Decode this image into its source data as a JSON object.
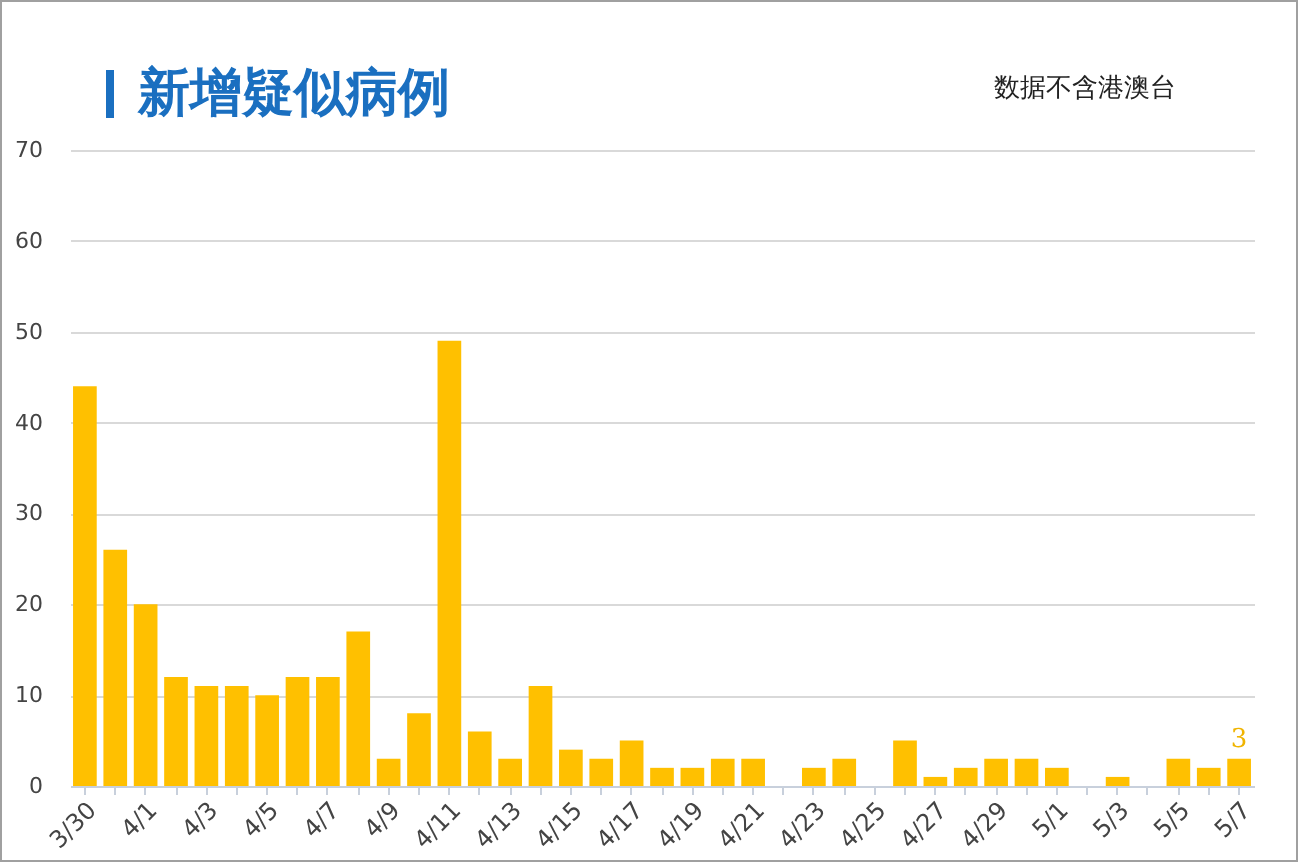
{
  "chart_data": {
    "type": "bar",
    "title": "新增疑似病例",
    "annotations": [
      "数据不含港澳台"
    ],
    "categories": [
      "3/30",
      null,
      "4/1",
      null,
      "4/3",
      null,
      "4/5",
      null,
      "4/7",
      null,
      "4/9",
      null,
      "4/11",
      null,
      "4/13",
      null,
      "4/15",
      null,
      "4/17",
      null,
      "4/19",
      null,
      "4/21",
      null,
      "4/23",
      null,
      "4/25",
      null,
      "4/27",
      null,
      "4/29",
      null,
      "5/1",
      null,
      "5/3",
      null,
      "5/5",
      null,
      "5/7"
    ],
    "values": [
      44,
      26,
      20,
      12,
      11,
      11,
      10,
      12,
      12,
      17,
      3,
      8,
      49,
      6,
      3,
      11,
      4,
      3,
      5,
      2,
      2,
      3,
      3,
      0,
      2,
      3,
      0,
      5,
      1,
      2,
      3,
      3,
      2,
      0,
      1,
      0,
      3,
      2,
      3
    ],
    "value_labels": [
      null,
      null,
      null,
      null,
      null,
      null,
      null,
      null,
      null,
      null,
      null,
      null,
      null,
      null,
      null,
      null,
      null,
      null,
      null,
      null,
      null,
      null,
      null,
      null,
      null,
      null,
      null,
      null,
      null,
      null,
      null,
      null,
      null,
      null,
      null,
      null,
      null,
      null,
      "3"
    ],
    "color": "#ffc000",
    "ylim": [
      0,
      70
    ],
    "yticks": [
      0,
      10,
      20,
      30,
      40,
      50,
      60,
      70
    ],
    "grid": "y"
  }
}
